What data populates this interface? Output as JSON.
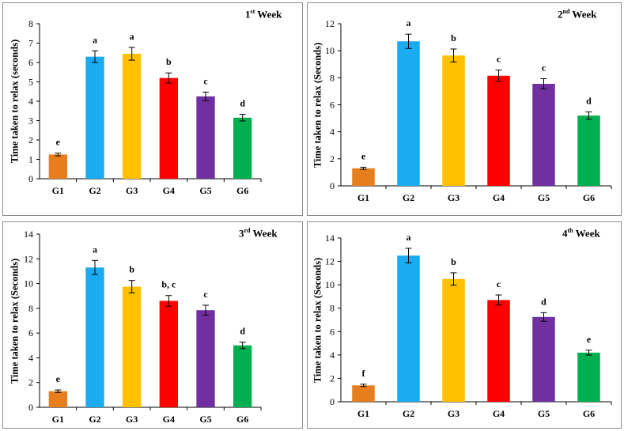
{
  "chart_data": [
    {
      "type": "bar",
      "title_num": "1",
      "title_sup": "st",
      "title_rest": "Week",
      "ylabel": "Time taken to relax (seconds)",
      "categories": [
        "G1",
        "G2",
        "G3",
        "G4",
        "G5",
        "G6"
      ],
      "values": [
        1.25,
        6.3,
        6.45,
        5.2,
        4.25,
        3.15
      ],
      "errors": [
        0.07,
        0.3,
        0.33,
        0.26,
        0.22,
        0.17
      ],
      "letters": [
        "e",
        "a",
        "a",
        "b",
        "c",
        "d"
      ],
      "ylim": [
        0,
        8
      ],
      "yticks": [
        0,
        1,
        2,
        3,
        4,
        5,
        6,
        7,
        8
      ]
    },
    {
      "type": "bar",
      "title_num": "2",
      "title_sup": "nd",
      "title_rest": "Week",
      "ylabel": "Time taken to relax (Seconds)",
      "categories": [
        "G1",
        "G2",
        "G3",
        "G4",
        "G5",
        "G6"
      ],
      "values": [
        1.3,
        10.7,
        9.65,
        8.15,
        7.55,
        5.2
      ],
      "errors": [
        0.08,
        0.53,
        0.48,
        0.42,
        0.38,
        0.27
      ],
      "letters": [
        "e",
        "a",
        "b",
        "c",
        "c",
        "d"
      ],
      "ylim": [
        0,
        12
      ],
      "yticks": [
        0,
        2,
        4,
        6,
        8,
        10,
        12
      ]
    },
    {
      "type": "bar",
      "title_num": "3",
      "title_sup": "rd",
      "title_rest": "Week",
      "ylabel": "Time taken to relax (Seconds)",
      "categories": [
        "G1",
        "G2",
        "G3",
        "G4",
        "G5",
        "G6"
      ],
      "values": [
        1.3,
        11.3,
        9.75,
        8.6,
        7.85,
        5.0
      ],
      "errors": [
        0.1,
        0.57,
        0.5,
        0.43,
        0.4,
        0.26
      ],
      "letters": [
        "e",
        "a",
        "b",
        "b, c",
        "c",
        "d"
      ],
      "ylim": [
        0,
        14
      ],
      "yticks": [
        0,
        2,
        4,
        6,
        8,
        10,
        12,
        14
      ]
    },
    {
      "type": "bar",
      "title_num": "4",
      "title_sup": "th",
      "title_rest": "Week",
      "ylabel": "Time taken to relax (Seconds)",
      "categories": [
        "G1",
        "G2",
        "G3",
        "G4",
        "G5",
        "G6"
      ],
      "values": [
        1.4,
        12.5,
        10.5,
        8.7,
        7.25,
        4.2
      ],
      "errors": [
        0.1,
        0.62,
        0.53,
        0.43,
        0.37,
        0.21
      ],
      "letters": [
        "f",
        "a",
        "b",
        "c",
        "d",
        "e"
      ],
      "ylim": [
        0,
        14
      ],
      "yticks": [
        0,
        2,
        4,
        6,
        8,
        10,
        12,
        14
      ]
    }
  ],
  "colors": [
    "#e67e1e",
    "#1aabf0",
    "#ffc000",
    "#ff0000",
    "#7030a0",
    "#00b050"
  ]
}
